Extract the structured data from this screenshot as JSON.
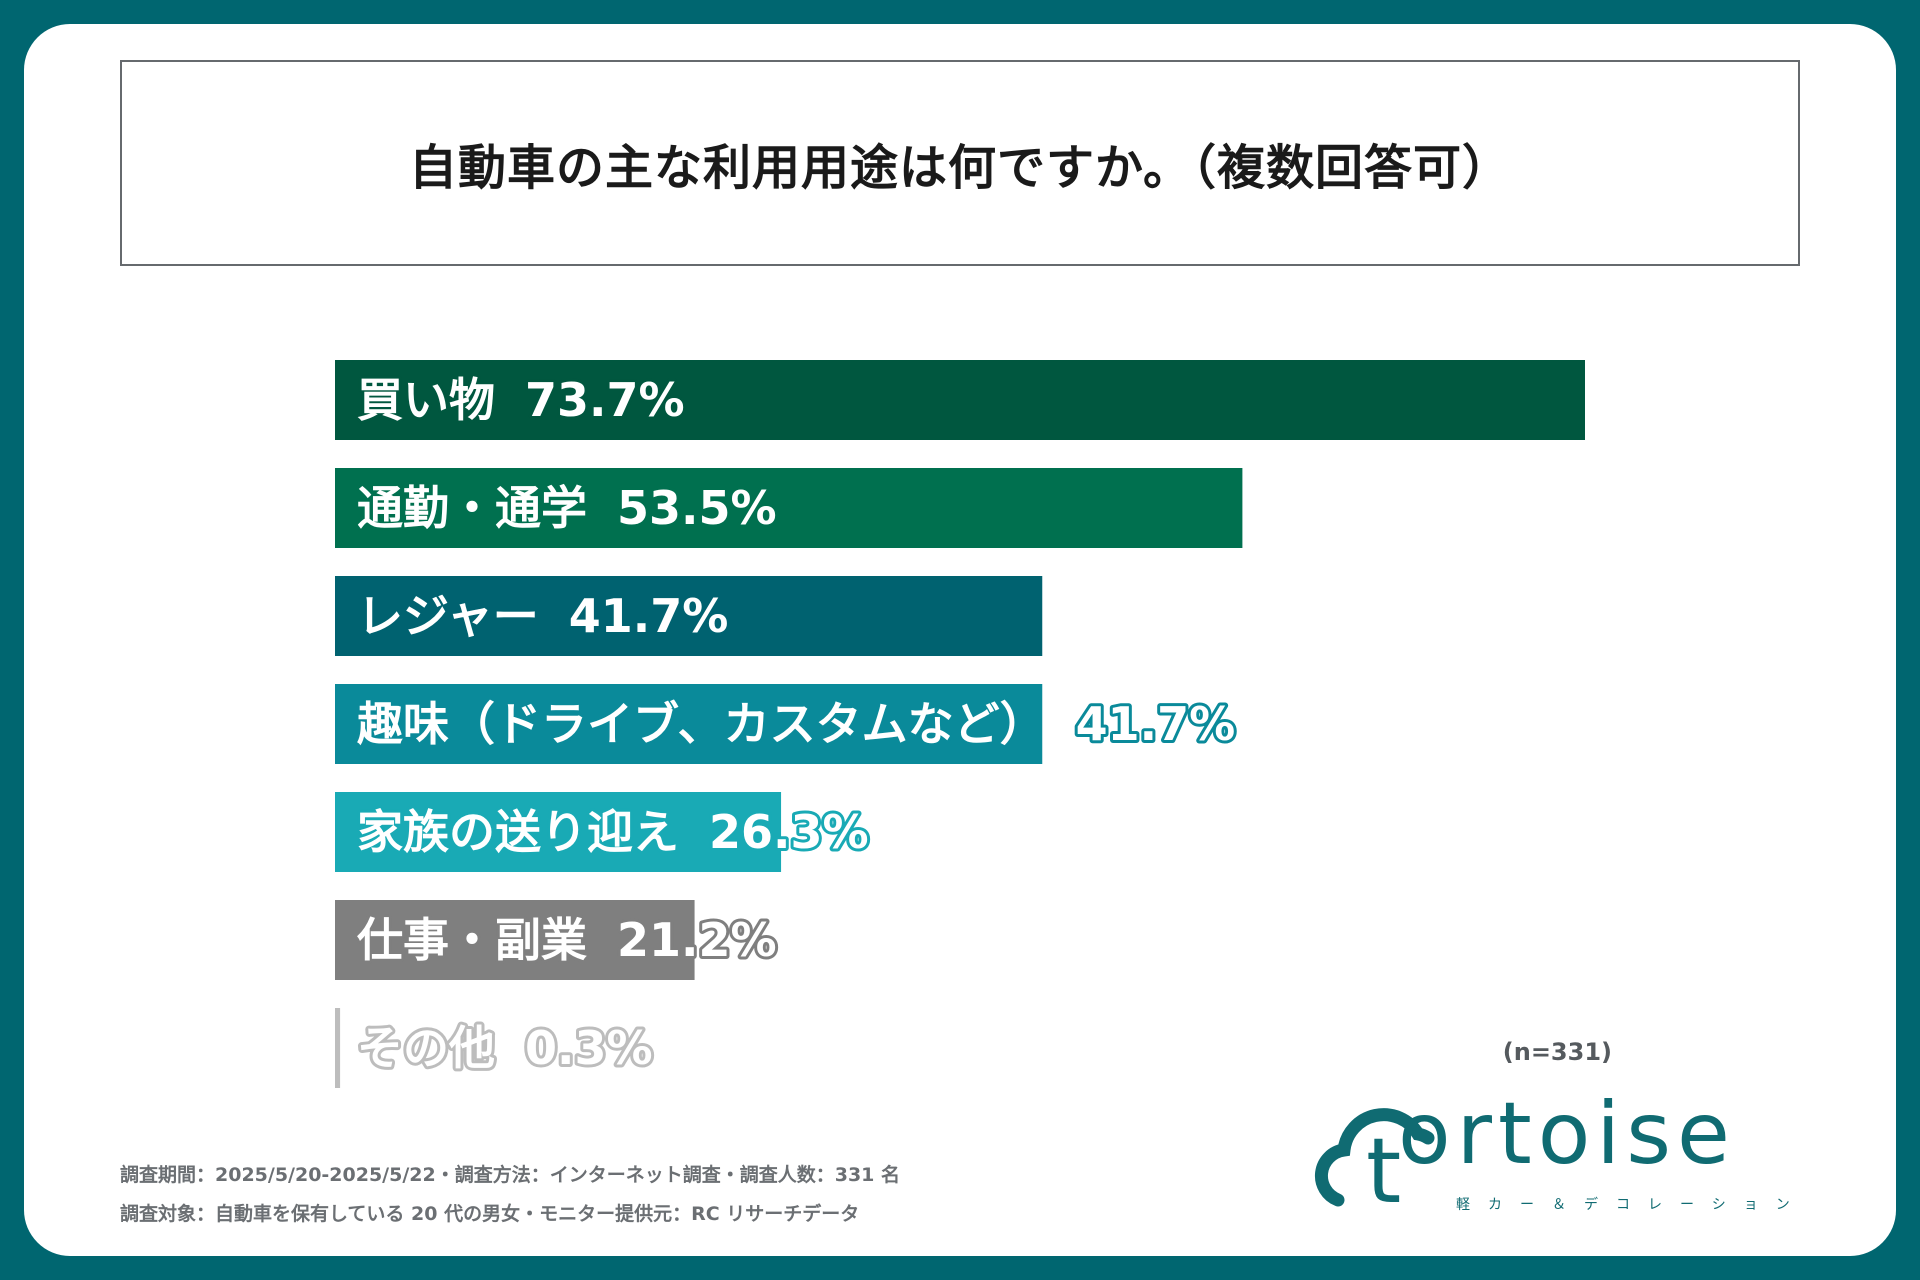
{
  "chart_data": {
    "type": "bar",
    "orientation": "horizontal",
    "title": "自動車の主な利用用途は何ですか。（複数回答可）",
    "categories": [
      "買い物",
      "通勤・通学",
      "レジャー",
      "趣味（ドライブ、カスタムなど）",
      "家族の送り迎え",
      "仕事・副業",
      "その他"
    ],
    "values": [
      73.7,
      53.5,
      41.7,
      41.7,
      26.3,
      21.2,
      0.3
    ],
    "value_labels": [
      "73.7%",
      "53.5%",
      "41.7%",
      "41.7%",
      "26.3%",
      "21.2%",
      "0.3%"
    ],
    "colors": [
      "#00573f",
      "#00704f",
      "#006270",
      "#0a8a9a",
      "#19aab5",
      "#7f7f7f",
      "#bdbdbd"
    ],
    "xlim": [
      0,
      73.7
    ],
    "sample_size": "(n=331)"
  },
  "footnotes": {
    "line1": "調査期間：2025/5/20-2025/5/22・調査方法：インターネット調査・調査人数：331 名",
    "line2": "調査対象：自動車を保有している 20 代の男女・モニター提供元：RC リサーチデータ"
  },
  "logo": {
    "word": "ortoise",
    "letter": "t",
    "subtitle": "軽カー＆デコレーション"
  }
}
